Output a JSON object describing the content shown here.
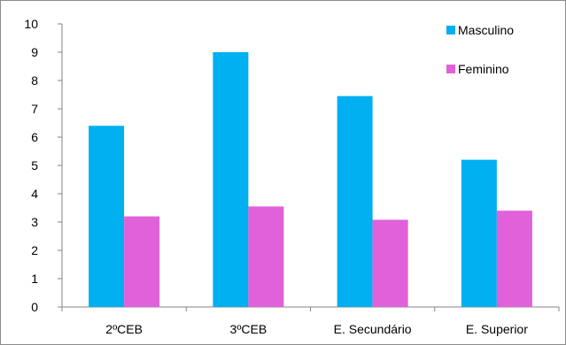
{
  "chart_data": {
    "type": "bar",
    "title": "",
    "xlabel": "",
    "ylabel": "",
    "categories": [
      "2ºCEB",
      "3ºCEB",
      "E. Secundário",
      "E. Superior"
    ],
    "series": [
      {
        "name": "Masculino",
        "values": [
          6.4,
          9.0,
          7.45,
          5.2
        ],
        "color": "#00b0f0"
      },
      {
        "name": "Feminino",
        "values": [
          3.2,
          3.55,
          3.08,
          3.4
        ],
        "color": "#e061d9"
      }
    ],
    "ylim": [
      0,
      10
    ],
    "yticks": [
      "0",
      "1",
      "2",
      "3",
      "4",
      "5",
      "6",
      "7",
      "8",
      "9",
      "10"
    ],
    "grid": false,
    "legend_position": "top-right"
  }
}
